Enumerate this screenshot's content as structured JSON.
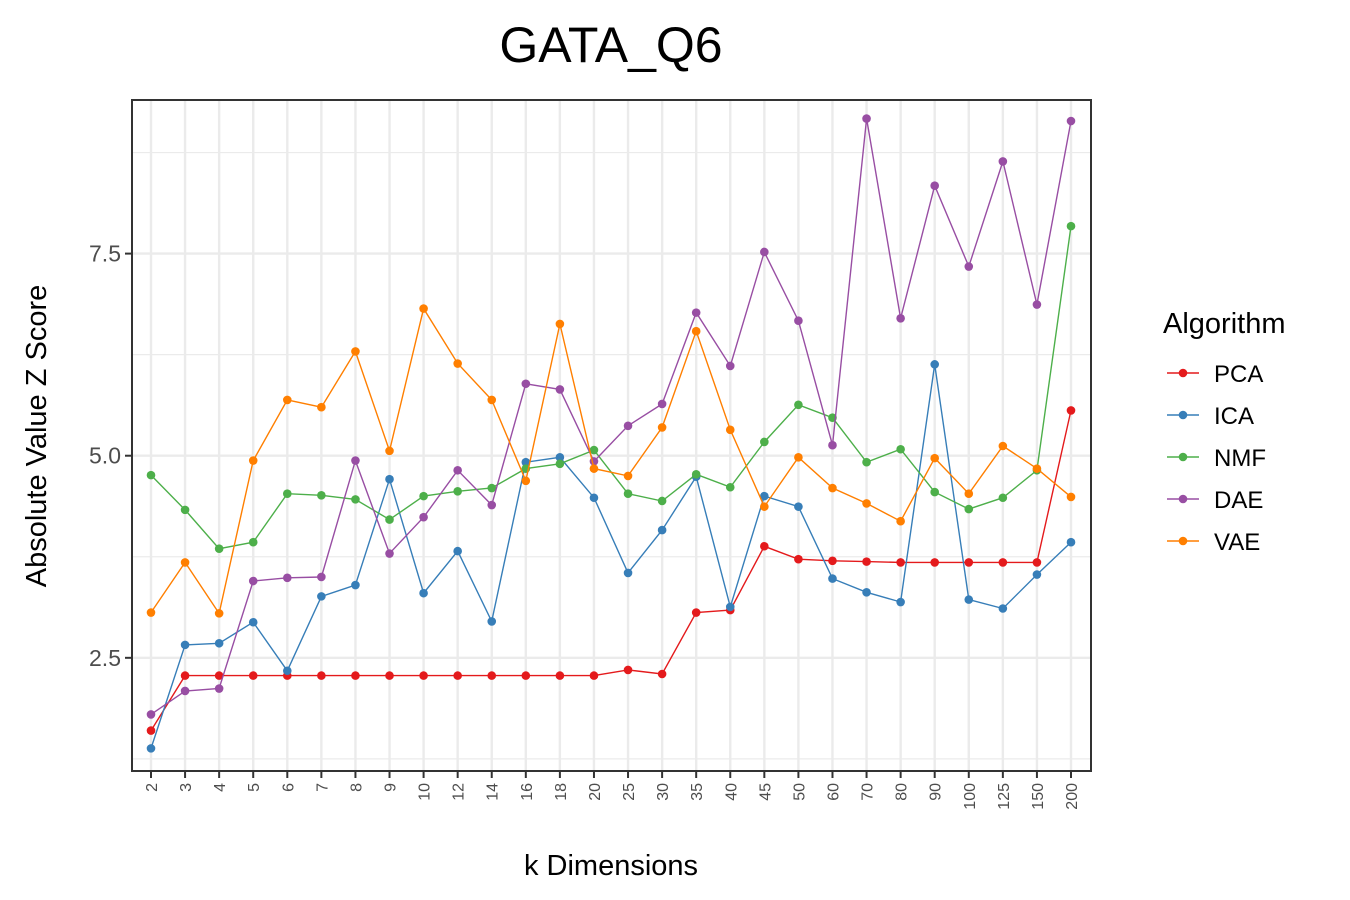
{
  "chart_data": {
    "type": "line",
    "title": "GATA_Q6",
    "xlabel": "k Dimensions",
    "ylabel": "Absolute Value Z Score",
    "categories": [
      "2",
      "3",
      "4",
      "5",
      "6",
      "7",
      "8",
      "9",
      "10",
      "12",
      "14",
      "16",
      "18",
      "20",
      "25",
      "30",
      "35",
      "40",
      "45",
      "50",
      "60",
      "70",
      "80",
      "90",
      "100",
      "125",
      "150",
      "200"
    ],
    "ylim": [
      1.1,
      9.4
    ],
    "yticks": [
      2.5,
      5.0,
      7.5
    ],
    "ytick_labels": [
      "2.5",
      "5.0",
      "7.5"
    ],
    "grid": true,
    "legend": {
      "title": "Algorithm",
      "position": "right"
    },
    "series": [
      {
        "name": "PCA",
        "color": "#e41a1c",
        "values": [
          1.6,
          2.28,
          2.28,
          2.28,
          2.28,
          2.28,
          2.28,
          2.28,
          2.28,
          2.28,
          2.28,
          2.28,
          2.28,
          2.28,
          2.35,
          2.3,
          3.06,
          3.09,
          3.88,
          3.72,
          3.7,
          3.69,
          3.68,
          3.68,
          3.68,
          3.68,
          3.68,
          5.56
        ]
      },
      {
        "name": "ICA",
        "color": "#377eb8",
        "values": [
          1.38,
          2.66,
          2.68,
          2.94,
          2.34,
          3.26,
          3.4,
          4.71,
          3.3,
          3.82,
          2.95,
          4.92,
          4.98,
          4.48,
          3.55,
          4.08,
          4.74,
          3.13,
          4.5,
          4.37,
          3.48,
          3.31,
          3.19,
          6.13,
          3.22,
          3.11,
          3.53,
          3.93
        ]
      },
      {
        "name": "NMF",
        "color": "#4daf4a",
        "values": [
          4.76,
          4.33,
          3.85,
          3.93,
          4.53,
          4.51,
          4.46,
          4.21,
          4.5,
          4.56,
          4.6,
          4.84,
          4.9,
          5.07,
          4.53,
          4.44,
          4.77,
          4.61,
          5.17,
          5.63,
          5.47,
          4.92,
          5.08,
          4.55,
          4.34,
          4.48,
          4.82,
          7.84
        ]
      },
      {
        "name": "DAE",
        "color": "#984ea3",
        "values": [
          1.8,
          2.09,
          2.12,
          3.45,
          3.49,
          3.5,
          4.94,
          3.79,
          4.24,
          4.82,
          4.39,
          5.89,
          5.82,
          4.93,
          5.37,
          5.64,
          6.77,
          6.11,
          7.52,
          6.67,
          5.13,
          9.17,
          6.7,
          8.34,
          7.34,
          8.64,
          6.87,
          9.14
        ]
      },
      {
        "name": "VAE",
        "color": "#ff7f00",
        "values": [
          3.06,
          3.68,
          3.05,
          4.94,
          5.69,
          5.6,
          6.29,
          5.06,
          6.82,
          6.14,
          5.69,
          4.69,
          6.63,
          4.84,
          4.75,
          5.35,
          6.54,
          5.32,
          4.37,
          4.98,
          4.6,
          4.41,
          4.19,
          4.97,
          4.53,
          5.12,
          4.84,
          4.49
        ]
      }
    ]
  }
}
